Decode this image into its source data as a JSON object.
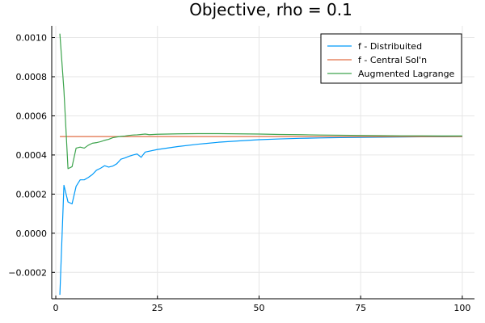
{
  "chart_data": {
    "type": "line",
    "title": "Objective, rho = 0.1",
    "xlabel": "",
    "ylabel": "",
    "xlim": [
      -1,
      103
    ],
    "ylim": [
      -0.000335,
      0.00106
    ],
    "xticks": [
      0,
      25,
      50,
      75,
      100
    ],
    "xtick_labels": [
      "0",
      "25",
      "50",
      "75",
      "100"
    ],
    "yticks": [
      -0.0002,
      0.0,
      0.0002,
      0.0004,
      0.0006,
      0.0008,
      0.001
    ],
    "ytick_labels": [
      "−0.0002",
      "0.0000",
      "0.0002",
      "0.0004",
      "0.0006",
      "0.0008",
      "0.0010"
    ],
    "grid": true,
    "legend_position": "top-right",
    "series": [
      {
        "name": "f - Distribuited",
        "color": "#009af9",
        "x": [
          1,
          2,
          3,
          4,
          5,
          6,
          7,
          8,
          9,
          10,
          11,
          12,
          13,
          14,
          15,
          16,
          17,
          18,
          19,
          20,
          21,
          22,
          25,
          30,
          35,
          40,
          45,
          50,
          55,
          60,
          65,
          70,
          75,
          80,
          85,
          90,
          95,
          100
        ],
        "y": [
          -0.000315,
          0.000245,
          0.00016,
          0.00015,
          0.00024,
          0.000273,
          0.000273,
          0.000285,
          0.0003,
          0.000322,
          0.000332,
          0.000345,
          0.000338,
          0.000343,
          0.000355,
          0.000378,
          0.000385,
          0.000393,
          0.0004,
          0.000405,
          0.000388,
          0.000415,
          0.000428,
          0.000443,
          0.000455,
          0.000465,
          0.000472,
          0.000478,
          0.000482,
          0.000485,
          0.000487,
          0.000489,
          0.00049,
          0.000491,
          0.000492,
          0.000493,
          0.000493,
          0.000494
        ]
      },
      {
        "name": "f - Central Sol'n",
        "color": "#e26f46",
        "x": [
          1,
          100
        ],
        "y": [
          0.000494,
          0.000494
        ]
      },
      {
        "name": "Augmented Lagrange",
        "color": "#3da44d",
        "x": [
          1,
          2,
          3,
          4,
          5,
          6,
          7,
          8,
          9,
          10,
          11,
          12,
          13,
          14,
          15,
          16,
          17,
          18,
          19,
          20,
          21,
          22,
          23,
          25,
          30,
          35,
          40,
          45,
          50,
          55,
          60,
          65,
          70,
          75,
          80,
          85,
          90,
          95,
          100
        ],
        "y": [
          0.00102,
          0.00073,
          0.00033,
          0.00034,
          0.000435,
          0.00044,
          0.000435,
          0.00045,
          0.00046,
          0.000463,
          0.000468,
          0.000475,
          0.00048,
          0.000488,
          0.000492,
          0.000495,
          0.000497,
          0.0005,
          0.000502,
          0.000503,
          0.000505,
          0.000507,
          0.000504,
          0.000506,
          0.000508,
          0.000509,
          0.000509,
          0.000508,
          0.000507,
          0.000505,
          0.000504,
          0.000502,
          0.000501,
          0.0005,
          0.000499,
          0.000498,
          0.000498,
          0.000497,
          0.000497
        ]
      }
    ]
  }
}
